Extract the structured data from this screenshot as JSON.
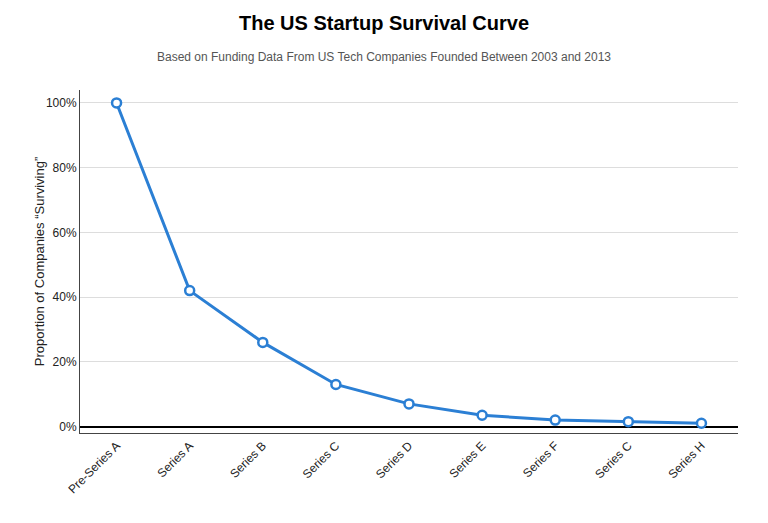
{
  "chart_data": {
    "type": "line",
    "title": "The US Startup Survival Curve",
    "subtitle": "Based on Funding Data From US Tech Companies Founded Between 2003 and 2013",
    "categories": [
      "Pre-Series A",
      "Series A",
      "Series B",
      "Series C",
      "Series D",
      "Series E",
      "Series F",
      "Series C",
      "Series H"
    ],
    "values": [
      1.0,
      0.42,
      0.26,
      0.13,
      0.07,
      0.035,
      0.02,
      0.015,
      0.01
    ],
    "color": "#2B7FD4",
    "marker": "circle",
    "ylabel": "Proportion of Companies “Surviving”",
    "ylim": [
      -0.02,
      1.04
    ],
    "yticks": [
      {
        "value": 0,
        "label": "0%"
      },
      {
        "value": 0.2,
        "label": "20%"
      },
      {
        "value": 0.4,
        "label": "40%"
      },
      {
        "value": 0.6,
        "label": "60%"
      },
      {
        "value": 0.8,
        "label": "80%"
      },
      {
        "value": 1.0,
        "label": "100%"
      }
    ],
    "grid": true
  }
}
